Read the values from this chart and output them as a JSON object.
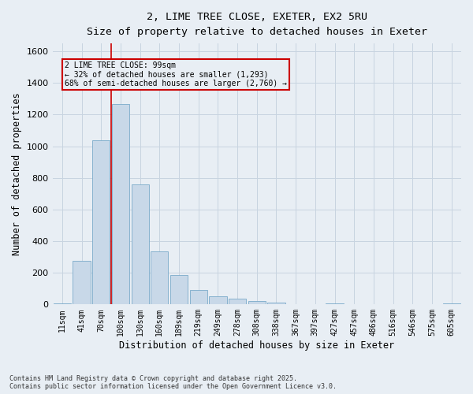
{
  "title_line1": "2, LIME TREE CLOSE, EXETER, EX2 5RU",
  "title_line2": "Size of property relative to detached houses in Exeter",
  "xlabel": "Distribution of detached houses by size in Exeter",
  "ylabel": "Number of detached properties",
  "categories": [
    "11sqm",
    "41sqm",
    "70sqm",
    "100sqm",
    "130sqm",
    "160sqm",
    "189sqm",
    "219sqm",
    "249sqm",
    "278sqm",
    "308sqm",
    "338sqm",
    "367sqm",
    "397sqm",
    "427sqm",
    "457sqm",
    "486sqm",
    "516sqm",
    "546sqm",
    "575sqm",
    "605sqm"
  ],
  "values": [
    5,
    275,
    1040,
    1265,
    760,
    335,
    185,
    90,
    50,
    38,
    22,
    12,
    4,
    0,
    8,
    0,
    0,
    0,
    0,
    0,
    5
  ],
  "bar_color": "#c8d8e8",
  "bar_edge_color": "#7aaaca",
  "grid_color": "#c8d4e0",
  "bg_color": "#e8eef4",
  "red_line_bar_index": 3,
  "annotation_text": "2 LIME TREE CLOSE: 99sqm\n← 32% of detached houses are smaller (1,293)\n68% of semi-detached houses are larger (2,760) →",
  "annotation_box_color": "#cc0000",
  "ylim": [
    0,
    1650
  ],
  "yticks": [
    0,
    200,
    400,
    600,
    800,
    1000,
    1200,
    1400,
    1600
  ],
  "footnote": "Contains HM Land Registry data © Crown copyright and database right 2025.\nContains public sector information licensed under the Open Government Licence v3.0."
}
